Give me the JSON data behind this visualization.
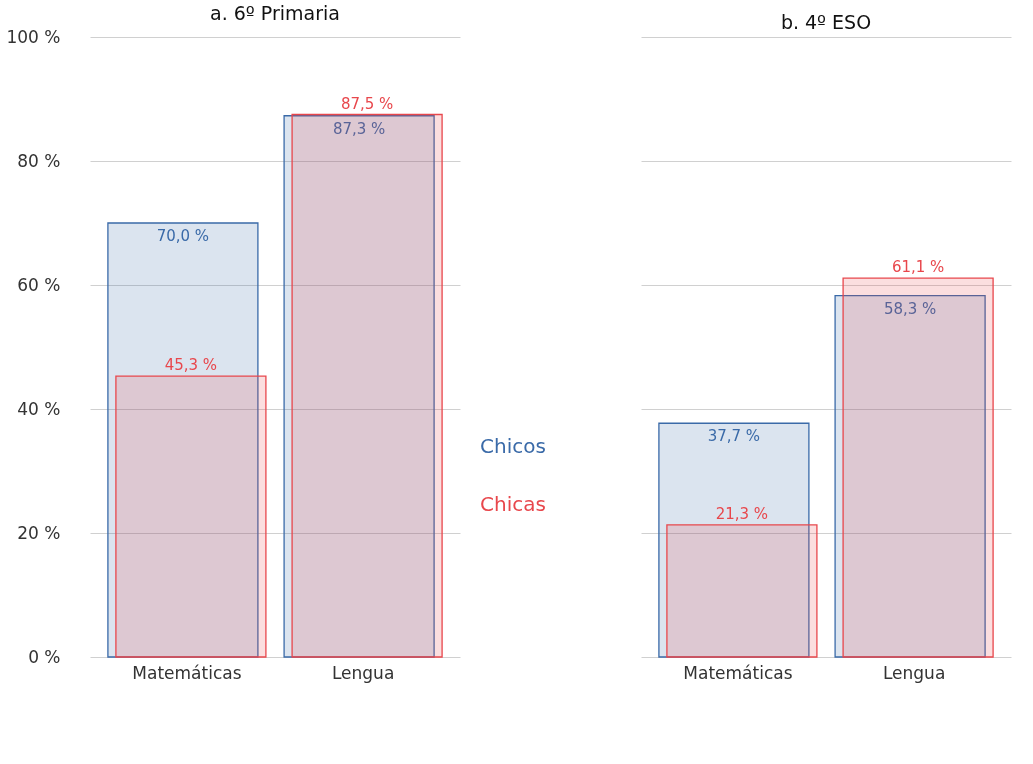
{
  "chart_data": [
    {
      "type": "bar",
      "title": "a. 6º Primaria",
      "categories": [
        "Matemáticas",
        "Lengua"
      ],
      "series": [
        {
          "name": "Chicos",
          "color": "#3a6aa8",
          "values": [
            70.0,
            87.3
          ],
          "value_labels": [
            "70,0 %",
            "87,3 %"
          ]
        },
        {
          "name": "Chicas",
          "color": "#e8474c",
          "values": [
            45.3,
            87.5
          ],
          "value_labels": [
            "45,3 %",
            "87,5 %"
          ]
        }
      ],
      "ylim": [
        0,
        100
      ],
      "yticks": [
        {
          "value": 0,
          "label": "0 %"
        },
        {
          "value": 20,
          "label": "20 %"
        },
        {
          "value": 40,
          "label": "40 %"
        },
        {
          "value": 60,
          "label": "60 %"
        },
        {
          "value": 80,
          "label": "80 %"
        },
        {
          "value": 100,
          "label": "100 %"
        }
      ],
      "grid": "y",
      "legend": "right"
    },
    {
      "type": "bar",
      "title": "b. 4º ESO",
      "categories": [
        "Matemáticas",
        "Lengua"
      ],
      "series": [
        {
          "color": "#3a6aa8",
          "values": [
            37.7,
            58.3
          ],
          "value_labels": [
            "37,7 %",
            "58,3 %"
          ]
        },
        {
          "color": "#e8474c",
          "values": [
            21.3,
            61.1
          ],
          "value_labels": [
            "21,3 %",
            "61,1 %"
          ]
        }
      ],
      "ylim": [
        0,
        100
      ],
      "yticks": [
        0,
        20,
        40,
        60,
        80,
        100
      ],
      "grid": "y",
      "tick_labels": "x"
    }
  ]
}
